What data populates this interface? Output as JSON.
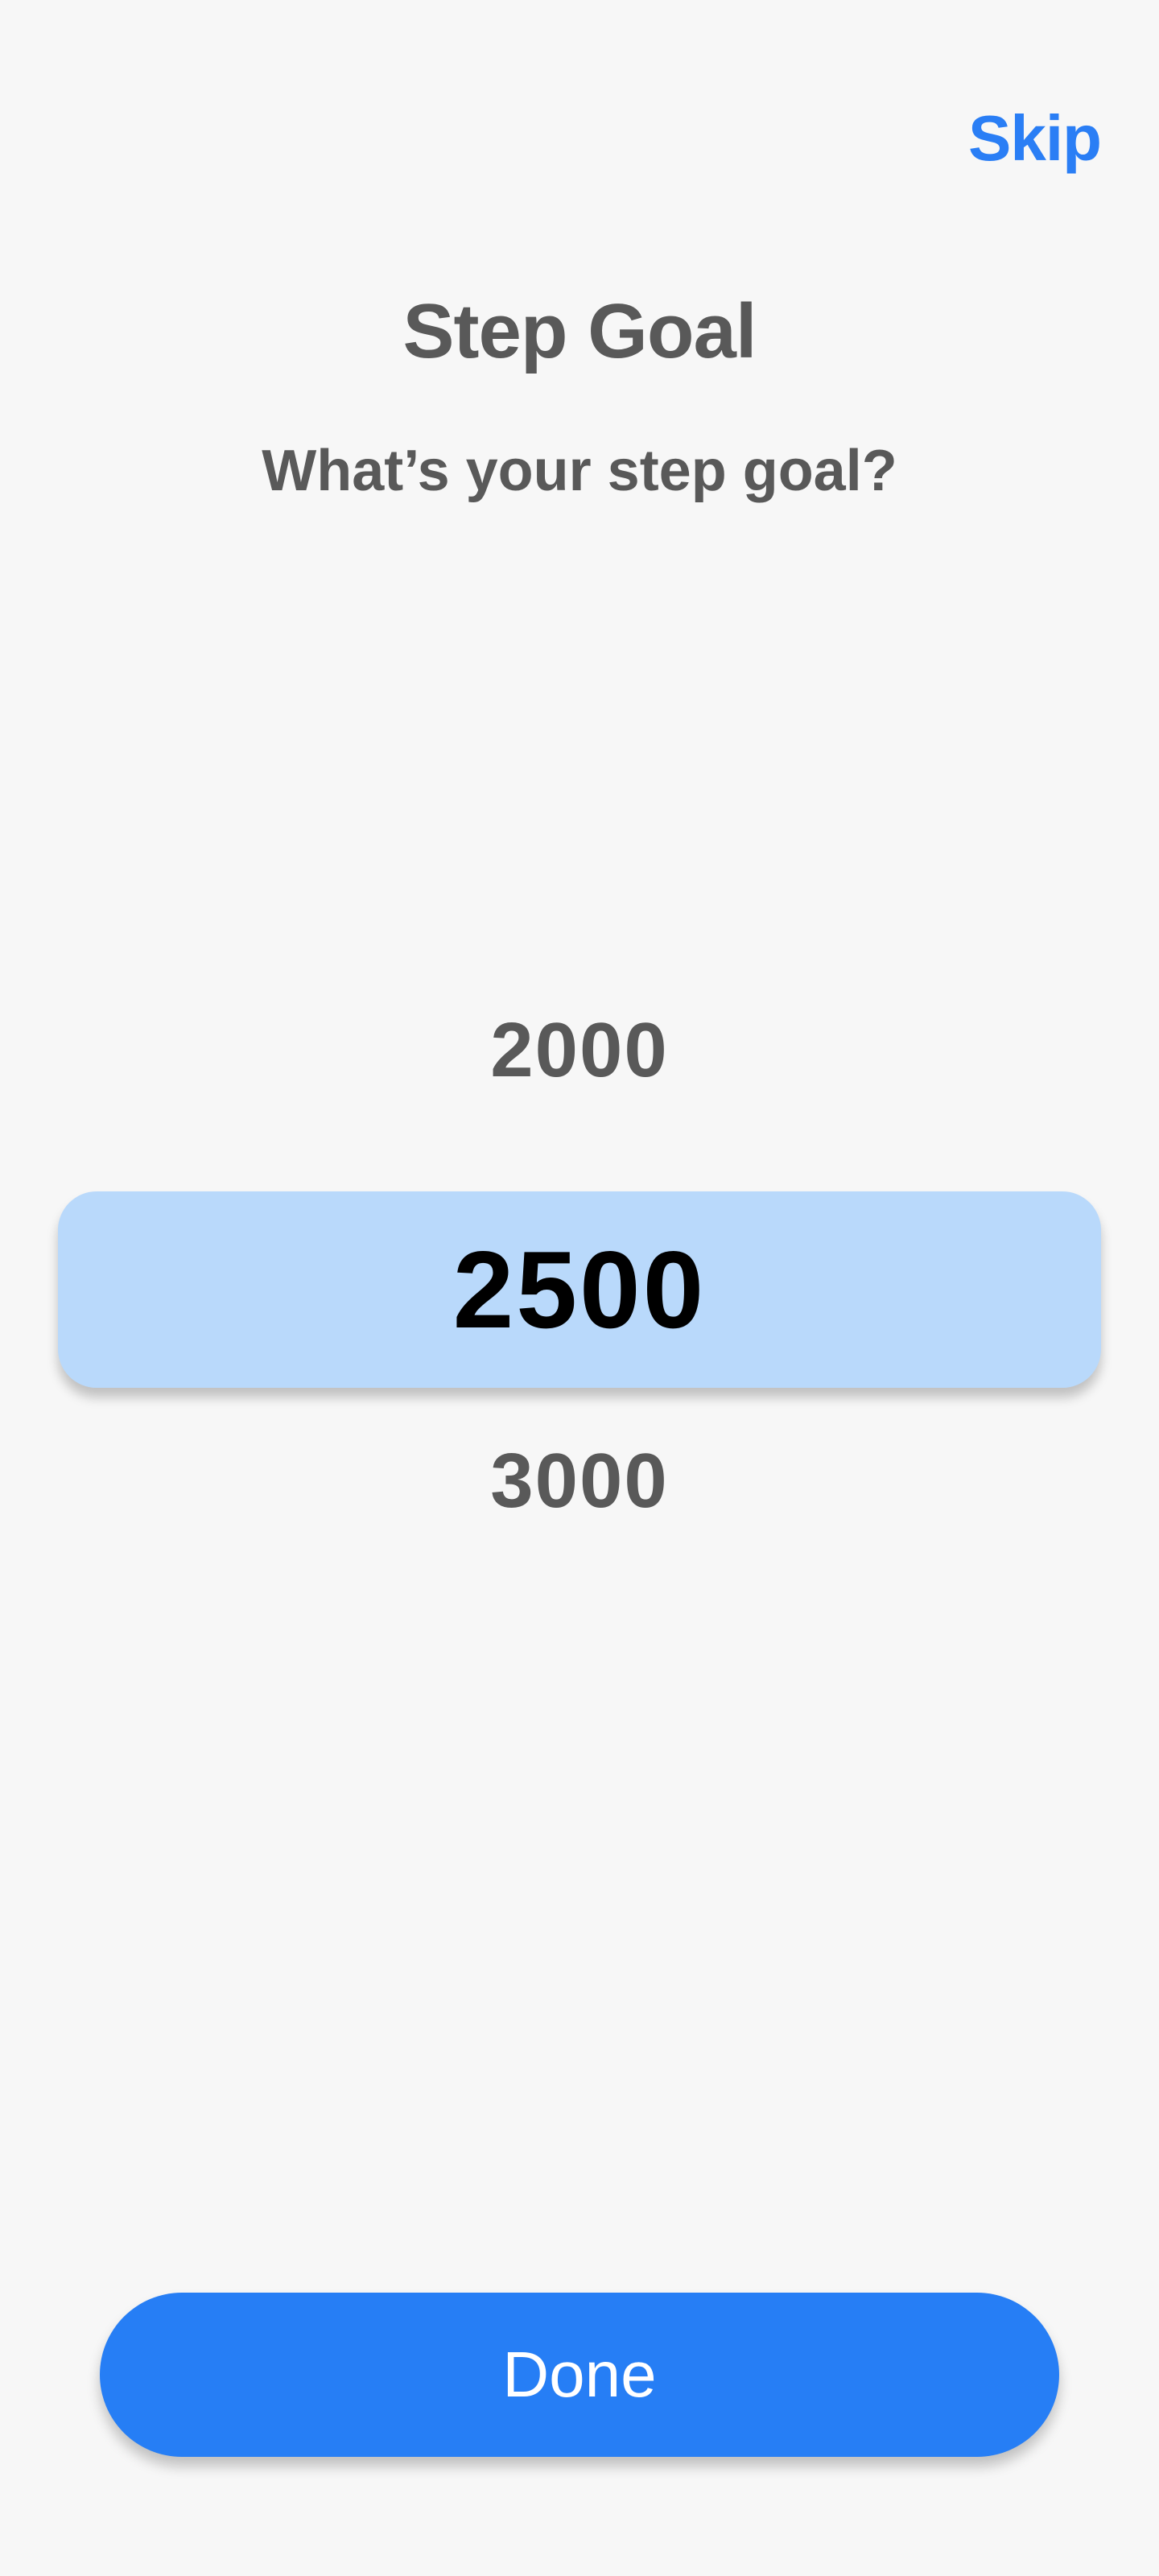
{
  "header": {
    "skip_label": "Skip"
  },
  "title": "Step Goal",
  "subtitle": "What’s your step goal?",
  "picker": {
    "previous": "2000",
    "selected": "2500",
    "next": "3000"
  },
  "footer": {
    "done_label": "Done"
  },
  "colors": {
    "accent": "#267ef5",
    "selection_background": "#b9d9fb",
    "text_muted": "#595959",
    "background": "#f7f7f7"
  }
}
